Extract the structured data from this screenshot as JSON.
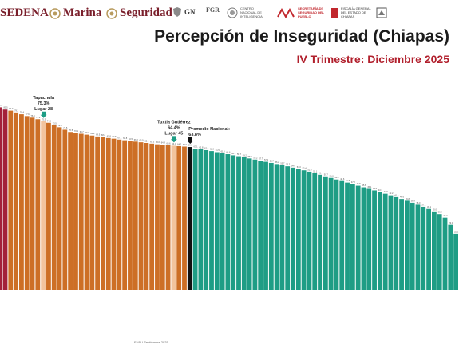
{
  "header": {
    "sedena": "SEDENA",
    "marina": "Marina",
    "seguridad": "Seguridad",
    "gn": "GN",
    "fgr": "FGR",
    "cni": "CENTRO NACIONAL DE INTELIGENCIA",
    "sspc": "SECRETARÍA DE SEGURIDAD DEL PUEBLO",
    "fiscalia": "FISCALÍA GENERAL DEL ESTADO DE CHIAPAS"
  },
  "title": "Percepción de Inseguridad (Chiapas)",
  "subtitle": "IV Trimestre:  Diciembre 2025",
  "footer": "ENSU Septiembre 2025",
  "colors": {
    "top": "#a3203a",
    "orange": "#cd6f26",
    "highlight": "#f2c49e",
    "national": "#111111",
    "green": "#1e9d85",
    "annotation_arrow": "#1e9d85"
  },
  "chart_data": {
    "type": "bar",
    "values": [
      82.0,
      81.5,
      80.5,
      80.0,
      79.2,
      78.4,
      77.6,
      76.9,
      76.2,
      75.3,
      74.6,
      73.5,
      72.6,
      71.5,
      70.5,
      70.1,
      69.7,
      69.3,
      68.9,
      68.5,
      68.2,
      67.8,
      67.5,
      67.1,
      66.8,
      66.5,
      66.2,
      65.9,
      65.6,
      65.3,
      65.0,
      64.8,
      64.6,
      64.4,
      64.2,
      64.0,
      63.8,
      63.1,
      62.8,
      62.4,
      62.0,
      61.5,
      61.0,
      60.6,
      60.1,
      59.7,
      59.2,
      58.7,
      58.2,
      57.7,
      57.2,
      56.7,
      56.2,
      55.7,
      55.2,
      54.6,
      54.0,
      53.4,
      52.8,
      52.1,
      51.4,
      50.7,
      50.0,
      49.3,
      48.6,
      47.9,
      47.2,
      46.5,
      45.8,
      45.1,
      44.4,
      43.7,
      42.9,
      42.2,
      41.4,
      40.6,
      39.8,
      38.9,
      38.0,
      37.1,
      36.1,
      35.0,
      33.8,
      32.2,
      29.0,
      25.0
    ],
    "highlight_indices": [
      9,
      33
    ],
    "national_index": 36,
    "top_count": 3,
    "ylim": [
      0,
      100
    ],
    "annotations": [
      {
        "index": 9,
        "name": "Tapachula",
        "value_label": "75.3%",
        "rank_label": "Lugar 28"
      },
      {
        "index": 33,
        "name": "Tuxtla Gutiérrez",
        "value_label": "64.4%",
        "rank_label": "Lugar 45"
      },
      {
        "index": 36,
        "name": "Promedio Nacional:",
        "value_label": "63.8%",
        "rank_label": ""
      }
    ]
  }
}
